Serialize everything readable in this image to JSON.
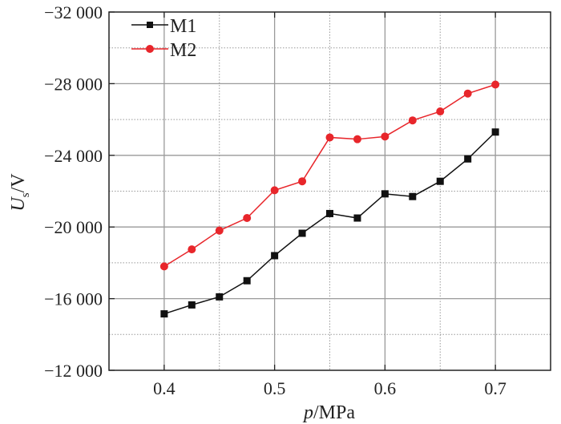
{
  "chart_data": {
    "type": "line",
    "title": "",
    "xlabel_italic": "p",
    "xlabel_unit": "/MPa",
    "ylabel_main": "U",
    "ylabel_sub": "s",
    "ylabel_unit": "/V",
    "xlim": [
      0.35,
      0.75
    ],
    "ylim": [
      -12000,
      -32000
    ],
    "x_ticks": [
      0.4,
      0.5,
      0.6,
      0.7
    ],
    "x_tick_labels": [
      "0.4",
      "0.5",
      "0.6",
      "0.7"
    ],
    "y_ticks": [
      -12000,
      -16000,
      -20000,
      -24000,
      -28000,
      -32000
    ],
    "y_tick_labels": [
      "−12 000",
      "−16 000",
      "−20 000",
      "−24 000",
      "−28 000",
      "−32 000"
    ],
    "grid": true,
    "legend_position": "top-left",
    "x": [
      0.4,
      0.425,
      0.45,
      0.475,
      0.5,
      0.525,
      0.55,
      0.575,
      0.6,
      0.625,
      0.65,
      0.675,
      0.7
    ],
    "series": [
      {
        "name": "M1",
        "color": "#111111",
        "marker": "square",
        "values": [
          -15150,
          -15650,
          -16100,
          -17000,
          -18400,
          -19650,
          -20750,
          -20500,
          -21850,
          -21700,
          -22550,
          -23800,
          -25300
        ]
      },
      {
        "name": "M2",
        "color": "#e8262b",
        "marker": "circle",
        "values": [
          -17800,
          -18750,
          -19800,
          -20500,
          -22050,
          -22550,
          -25000,
          -24900,
          -25050,
          -25950,
          -26450,
          -27450,
          -27950
        ]
      }
    ]
  }
}
